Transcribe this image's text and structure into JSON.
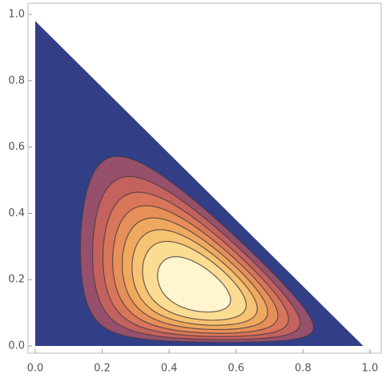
{
  "chart_data": {
    "type": "contour",
    "xlim": [
      0,
      1
    ],
    "ylim": [
      0,
      1
    ],
    "xticks": [
      {
        "value": 0,
        "label": "0.0"
      },
      {
        "value": 0.2,
        "label": "0.2"
      },
      {
        "value": 0.4,
        "label": "0.4"
      },
      {
        "value": 0.6,
        "label": "0.6"
      },
      {
        "value": 0.8,
        "label": "0.8"
      },
      {
        "value": 1,
        "label": "1.0"
      }
    ],
    "yticks": [
      {
        "value": 0,
        "label": "0.0"
      },
      {
        "value": 0.2,
        "label": "0.2"
      },
      {
        "value": 0.4,
        "label": "0.4"
      },
      {
        "value": 0.6,
        "label": "0.6"
      },
      {
        "value": 0.8,
        "label": "0.8"
      },
      {
        "value": 1,
        "label": "1.0"
      }
    ],
    "levels": [
      0.15,
      0.25,
      0.35,
      0.45,
      0.55,
      0.65,
      0.75,
      0.87
    ],
    "colors": [
      "#323e86",
      "#96506b",
      "#c3625e",
      "#d8765a",
      "#e68f58",
      "#efa95f",
      "#f6c372",
      "#fbdc93",
      "#fff5cf"
    ]
  }
}
